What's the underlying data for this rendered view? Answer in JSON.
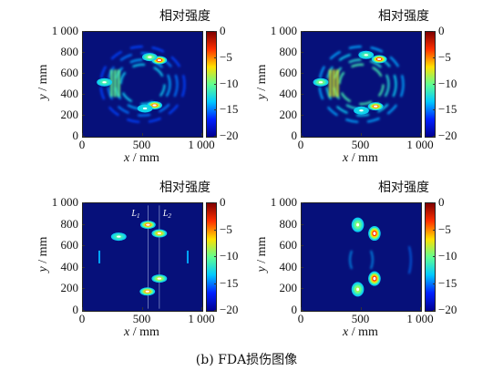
{
  "caption": "(b)  FDA损伤图像",
  "chart_data": [
    {
      "type": "heatmap",
      "panel": "top-left",
      "colorbar_title": "相对强度",
      "colorbar_ticks": [
        "0",
        "−5",
        "−10",
        "−15",
        "−20"
      ],
      "clim": [
        -20,
        0
      ],
      "xlabel": "x / mm",
      "ylabel": "y / mm",
      "xticks": [
        "0",
        "500",
        "1 000"
      ],
      "yticks": [
        "1 000",
        "800",
        "600",
        "400",
        "200",
        "0"
      ],
      "xlim": [
        0,
        1000
      ],
      "ylim": [
        0,
        1000
      ],
      "hotspots": [
        {
          "x": 640,
          "y": 730,
          "level": 0
        },
        {
          "x": 600,
          "y": 300,
          "level": -2
        },
        {
          "x": 560,
          "y": 760,
          "level": -8
        },
        {
          "x": 180,
          "y": 520,
          "level": -10
        },
        {
          "x": 520,
          "y": 270,
          "level": -12
        }
      ]
    },
    {
      "type": "heatmap",
      "panel": "top-right",
      "colorbar_title": "相对强度",
      "colorbar_ticks": [
        "0",
        "−5",
        "−10",
        "−15",
        "−20"
      ],
      "clim": [
        -20,
        0
      ],
      "xlabel": "x / mm",
      "ylabel": "y / mm",
      "xticks": [
        "0",
        "500",
        "1 000"
      ],
      "yticks": [
        "1 000",
        "800",
        "600",
        "400",
        "200",
        "0"
      ],
      "xlim": [
        0,
        1000
      ],
      "ylim": [
        0,
        1000
      ],
      "hotspots": [
        {
          "x": 650,
          "y": 740,
          "level": 0
        },
        {
          "x": 620,
          "y": 290,
          "level": -2
        },
        {
          "x": 160,
          "y": 520,
          "level": -8
        },
        {
          "x": 540,
          "y": 780,
          "level": -10
        },
        {
          "x": 500,
          "y": 250,
          "level": -12
        }
      ]
    },
    {
      "type": "heatmap",
      "panel": "bottom-left",
      "colorbar_title": "相对强度",
      "colorbar_ticks": [
        "0",
        "−5",
        "−10",
        "−15",
        "−20"
      ],
      "clim": [
        -20,
        0
      ],
      "xlabel": "x / mm",
      "ylabel": "y / mm",
      "xticks": [
        "0",
        "500",
        "1 000"
      ],
      "yticks": [
        "1 000",
        "800",
        "600",
        "400",
        "200",
        "0"
      ],
      "xlim": [
        0,
        1000
      ],
      "ylim": [
        0,
        1000
      ],
      "annotations": [
        "L1",
        "L2"
      ],
      "hotspots": [
        {
          "x": 545,
          "y": 800,
          "level": -2
        },
        {
          "x": 640,
          "y": 720,
          "level": -4
        },
        {
          "x": 640,
          "y": 300,
          "level": -6
        },
        {
          "x": 540,
          "y": 180,
          "level": -3
        },
        {
          "x": 300,
          "y": 690,
          "level": -10
        }
      ]
    },
    {
      "type": "heatmap",
      "panel": "bottom-right",
      "colorbar_title": "相对强度",
      "colorbar_ticks": [
        "0",
        "−5",
        "−10",
        "−15",
        "−20"
      ],
      "clim": [
        -20,
        0
      ],
      "xlabel": "x / mm",
      "ylabel": "y / mm",
      "xticks": [
        "0",
        "500",
        "1 000"
      ],
      "yticks": [
        "1 000",
        "800",
        "600",
        "400",
        "200",
        "0"
      ],
      "xlim": [
        0,
        1000
      ],
      "ylim": [
        0,
        1000
      ],
      "hotspots": [
        {
          "x": 470,
          "y": 800,
          "level": -8
        },
        {
          "x": 610,
          "y": 720,
          "level": 0
        },
        {
          "x": 610,
          "y": 300,
          "level": 0
        },
        {
          "x": 470,
          "y": 200,
          "level": -7
        }
      ]
    }
  ],
  "colors": {
    "background": "#06107a",
    "colormap": [
      "#00008f",
      "#0020ff",
      "#00c8ff",
      "#60ff90",
      "#ffe000",
      "#ff3000",
      "#800000"
    ]
  }
}
